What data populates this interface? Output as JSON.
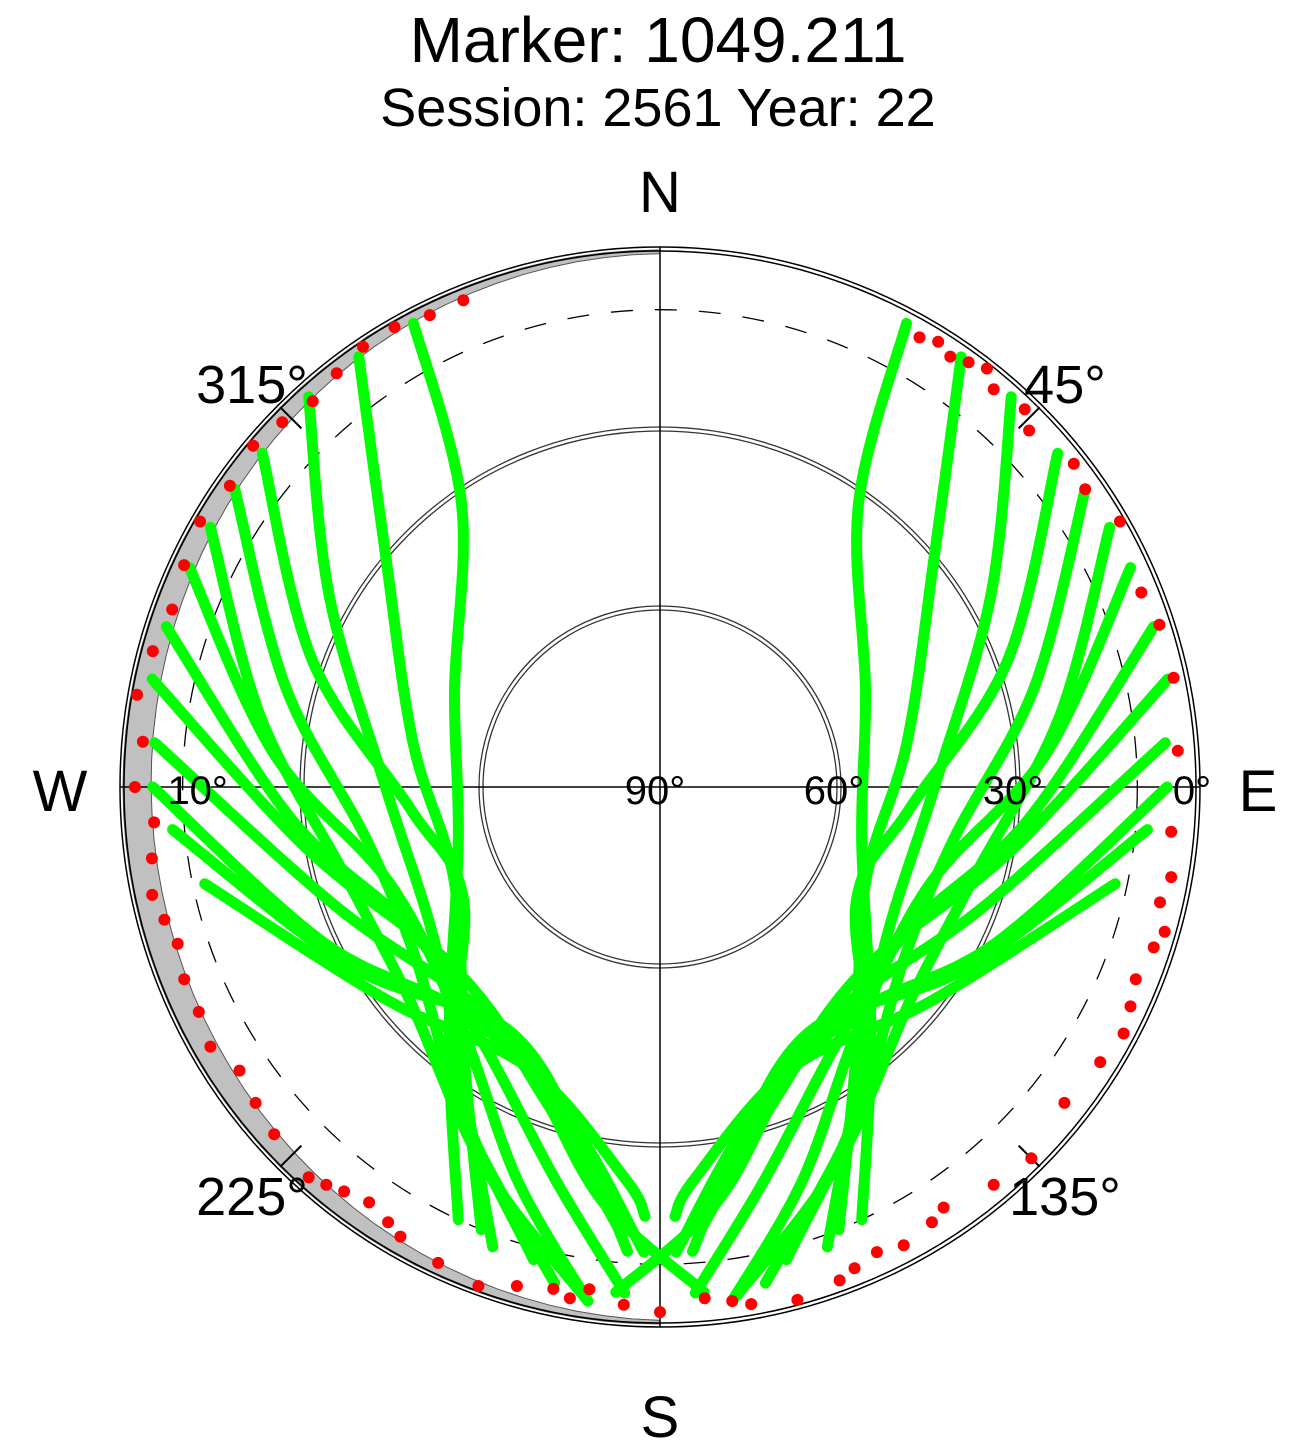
{
  "header": {
    "title": "Marker: 1049.211",
    "subtitle": "Session: 2561 Year: 22"
  },
  "chart_data": {
    "type": "scatter",
    "projection": "polar-skyplot",
    "title": "Marker: 1049.211",
    "subtitle": "Session: 2561 Year: 22",
    "cardinal_labels": {
      "north": "N",
      "east": "E",
      "south": "S",
      "west": "W"
    },
    "azimuth_labels": [
      {
        "azimuth": 45,
        "label": "45°"
      },
      {
        "azimuth": 135,
        "label": "135°"
      },
      {
        "azimuth": 225,
        "label": "225°"
      },
      {
        "azimuth": 315,
        "label": "315°"
      }
    ],
    "elevation_labels": [
      {
        "elevation": 0,
        "label": "0°"
      },
      {
        "elevation": 30,
        "label": "30°"
      },
      {
        "elevation": 60,
        "label": "60°"
      },
      {
        "elevation": 90,
        "label": "90°"
      },
      {
        "elevation": 10,
        "label": "10°"
      }
    ],
    "elevation_circles": [
      30,
      60
    ],
    "cutoff_elevation": 10,
    "grid": true,
    "colors": {
      "tracks": "#00ff00",
      "low_elevation_points": "#ff0000",
      "obstruction_mask": "#c0c0c0",
      "grid": "#000000"
    },
    "series": [
      {
        "point_color": "#00ff00",
        "tracks": [
          {
            "points": [
              [
                42,
                2
              ],
              [
                60,
                26
              ],
              [
                90,
                44
              ],
              [
                125,
                44
              ],
              [
                150,
                26
              ],
              [
                160,
                8
              ]
            ]
          },
          {
            "points": [
              [
                35,
                2
              ],
              [
                50,
                30
              ],
              [
                80,
                48
              ],
              [
                115,
                52
              ],
              [
                145,
                33
              ],
              [
                158,
                10
              ]
            ]
          },
          {
            "points": [
              [
                28,
                2
              ],
              [
                35,
                32
              ],
              [
                65,
                52
              ],
              [
                105,
                55
              ],
              [
                140,
                35
              ],
              [
                155,
                10
              ]
            ]
          },
          {
            "points": [
              [
                50,
                3
              ],
              [
                70,
                28
              ],
              [
                95,
                48
              ],
              [
                120,
                52
              ],
              [
                145,
                30
              ],
              [
                165,
                8
              ]
            ]
          },
          {
            "points": [
              [
                55,
                3
              ],
              [
                75,
                25
              ],
              [
                100,
                40
              ],
              [
                125,
                40
              ],
              [
                150,
                25
              ],
              [
                168,
                5
              ]
            ]
          },
          {
            "points": [
              [
                60,
                3
              ],
              [
                80,
                22
              ],
              [
                105,
                35
              ],
              [
                130,
                35
              ],
              [
                155,
                20
              ],
              [
                172,
                3
              ]
            ]
          },
          {
            "points": [
              [
                65,
                3
              ],
              [
                85,
                25
              ],
              [
                110,
                42
              ],
              [
                140,
                38
              ],
              [
                160,
                20
              ],
              [
                172,
                3
              ]
            ]
          },
          {
            "points": [
              [
                72,
                3
              ],
              [
                95,
                28
              ],
              [
                120,
                42
              ],
              [
                145,
                38
              ],
              [
                165,
                22
              ],
              [
                176,
                5
              ]
            ]
          },
          {
            "points": [
              [
                78,
                3
              ],
              [
                100,
                30
              ],
              [
                130,
                44
              ],
              [
                155,
                38
              ],
              [
                172,
                20
              ],
              [
                185,
                5
              ]
            ]
          },
          {
            "points": [
              [
                85,
                5
              ],
              [
                110,
                32
              ],
              [
                140,
                42
              ],
              [
                160,
                34
              ],
              [
                175,
                15
              ]
            ]
          },
          {
            "points": [
              [
                90,
                5
              ],
              [
                115,
                28
              ],
              [
                140,
                40
              ],
              [
                165,
                32
              ],
              [
                178,
                12
              ]
            ]
          },
          {
            "points": [
              [
                95,
                8
              ],
              [
                120,
                30
              ],
              [
                148,
                42
              ],
              [
                168,
                28
              ],
              [
                176,
                12
              ]
            ]
          },
          {
            "points": [
              [
                102,
                12
              ],
              [
                128,
                32
              ],
              [
                155,
                38
              ],
              [
                175,
                24
              ],
              [
                178,
                18
              ]
            ]
          },
          {
            "points": [
              [
                318,
                2
              ],
              [
                300,
                26
              ],
              [
                270,
                44
              ],
              [
                235,
                44
              ],
              [
                210,
                26
              ],
              [
                200,
                8
              ]
            ]
          },
          {
            "points": [
              [
                325,
                2
              ],
              [
                310,
                30
              ],
              [
                280,
                48
              ],
              [
                245,
                52
              ],
              [
                215,
                33
              ],
              [
                202,
                10
              ]
            ]
          },
          {
            "points": [
              [
                332,
                2
              ],
              [
                325,
                32
              ],
              [
                295,
                52
              ],
              [
                255,
                55
              ],
              [
                220,
                35
              ],
              [
                205,
                10
              ]
            ]
          },
          {
            "points": [
              [
                310,
                3
              ],
              [
                290,
                28
              ],
              [
                265,
                48
              ],
              [
                240,
                52
              ],
              [
                215,
                30
              ],
              [
                195,
                8
              ]
            ]
          },
          {
            "points": [
              [
                305,
                3
              ],
              [
                285,
                25
              ],
              [
                260,
                40
              ],
              [
                235,
                40
              ],
              [
                210,
                25
              ],
              [
                192,
                5
              ]
            ]
          },
          {
            "points": [
              [
                300,
                3
              ],
              [
                280,
                22
              ],
              [
                255,
                35
              ],
              [
                230,
                35
              ],
              [
                205,
                20
              ],
              [
                188,
                3
              ]
            ]
          },
          {
            "points": [
              [
                295,
                3
              ],
              [
                275,
                25
              ],
              [
                250,
                42
              ],
              [
                220,
                38
              ],
              [
                200,
                20
              ],
              [
                188,
                3
              ]
            ]
          },
          {
            "points": [
              [
                288,
                3
              ],
              [
                265,
                28
              ],
              [
                240,
                42
              ],
              [
                215,
                38
              ],
              [
                195,
                22
              ],
              [
                184,
                5
              ]
            ]
          },
          {
            "points": [
              [
                282,
                3
              ],
              [
                260,
                30
              ],
              [
                230,
                44
              ],
              [
                205,
                38
              ],
              [
                188,
                20
              ],
              [
                175,
                5
              ]
            ]
          },
          {
            "points": [
              [
                275,
                5
              ],
              [
                250,
                32
              ],
              [
                220,
                42
              ],
              [
                200,
                34
              ],
              [
                185,
                15
              ]
            ]
          },
          {
            "points": [
              [
                270,
                5
              ],
              [
                245,
                28
              ],
              [
                220,
                40
              ],
              [
                195,
                32
              ],
              [
                182,
                12
              ]
            ]
          },
          {
            "points": [
              [
                265,
                8
              ],
              [
                240,
                30
              ],
              [
                212,
                42
              ],
              [
                192,
                28
              ],
              [
                184,
                12
              ]
            ]
          },
          {
            "points": [
              [
                258,
                12
              ],
              [
                232,
                32
              ],
              [
                205,
                38
              ],
              [
                185,
                24
              ],
              [
                182,
                18
              ]
            ]
          }
        ]
      },
      {
        "point_color": "#ff0000",
        "points": [
          [
            30,
            3
          ],
          [
            32,
            2
          ],
          [
            34,
            3
          ],
          [
            36,
            2
          ],
          [
            38,
            1
          ],
          [
            40,
            3
          ],
          [
            44,
            2
          ],
          [
            46,
            4
          ],
          [
            52,
            2
          ],
          [
            55,
            3
          ],
          [
            60,
            1
          ],
          [
            68,
            3
          ],
          [
            72,
            2
          ],
          [
            78,
            2
          ],
          [
            86,
            3
          ],
          [
            95,
            4
          ],
          [
            100,
            3
          ],
          [
            103,
            4
          ],
          [
            106,
            2
          ],
          [
            108,
            3
          ],
          [
            112,
            4
          ],
          [
            115,
            3
          ],
          [
            118,
            2
          ],
          [
            122,
            3
          ],
          [
            128,
            4
          ],
          [
            135,
            2
          ],
          [
            140,
            3
          ],
          [
            146,
            5
          ],
          [
            148,
            4
          ],
          [
            152,
            3
          ],
          [
            155,
            4
          ],
          [
            158,
            3
          ],
          [
            160,
            2
          ],
          [
            165,
            1
          ],
          [
            170,
            2
          ],
          [
            172,
            3
          ],
          [
            175,
            4
          ],
          [
            180,
            2
          ],
          [
            184,
            3
          ],
          [
            188,
            5
          ],
          [
            190,
            3
          ],
          [
            192,
            4
          ],
          [
            196,
            3
          ],
          [
            200,
            1
          ],
          [
            205,
            2
          ],
          [
            210,
            3
          ],
          [
            212,
            4
          ],
          [
            215,
            5
          ],
          [
            218,
            4
          ],
          [
            220,
            3
          ],
          [
            222,
            2
          ],
          [
            228,
            3
          ],
          [
            232,
            4
          ],
          [
            236,
            5
          ],
          [
            240,
            3
          ],
          [
            244,
            4
          ],
          [
            248,
            4
          ],
          [
            252,
            5
          ],
          [
            255,
            4
          ],
          [
            258,
            3
          ],
          [
            262,
            4
          ],
          [
            266,
            5
          ],
          [
            270,
            2
          ],
          [
            275,
            3
          ],
          [
            280,
            1
          ],
          [
            285,
            2
          ],
          [
            290,
            3
          ],
          [
            295,
            2
          ],
          [
            300,
            1
          ],
          [
            305,
            2
          ],
          [
            310,
            1
          ],
          [
            314,
            2
          ],
          [
            318,
            3
          ],
          [
            322,
            2
          ],
          [
            326,
            1
          ],
          [
            330,
            1
          ],
          [
            334,
            2
          ],
          [
            338,
            2
          ]
        ]
      }
    ]
  }
}
